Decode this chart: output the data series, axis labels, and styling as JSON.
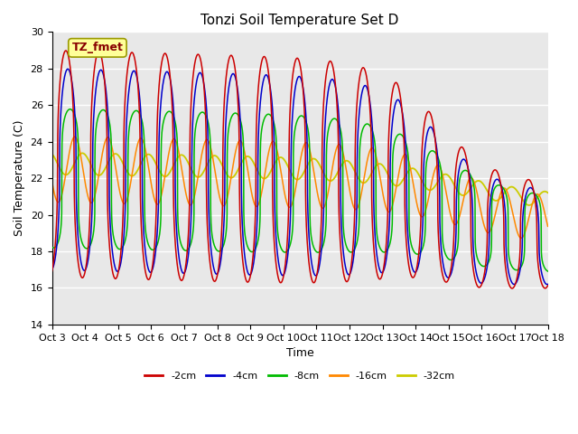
{
  "title": "Tonzi Soil Temperature Set D",
  "xlabel": "Time",
  "ylabel": "Soil Temperature (C)",
  "ylim": [
    14,
    30
  ],
  "background_color": "#e8e8e8",
  "annotation_text": "TZ_fmet",
  "annotation_bg": "#ffff99",
  "annotation_border": "#999900",
  "annotation_text_color": "#880000",
  "colors": {
    "-2cm": "#cc0000",
    "-4cm": "#0000cc",
    "-8cm": "#00bb00",
    "-16cm": "#ff8800",
    "-32cm": "#cccc00"
  },
  "legend_labels": [
    "-2cm",
    "-4cm",
    "-8cm",
    "-16cm",
    "-32cm"
  ],
  "x_tick_labels": [
    "Oct 3",
    "Oct 4",
    "Oct 5",
    "Oct 6",
    "Oct 7",
    "Oct 8",
    "Oct 9",
    "Oct 10",
    "Oct 11",
    "Oct 12",
    "Oct 13",
    "Oct 14",
    "Oct 15",
    "Oct 16",
    "Oct 17",
    "Oct 18"
  ]
}
